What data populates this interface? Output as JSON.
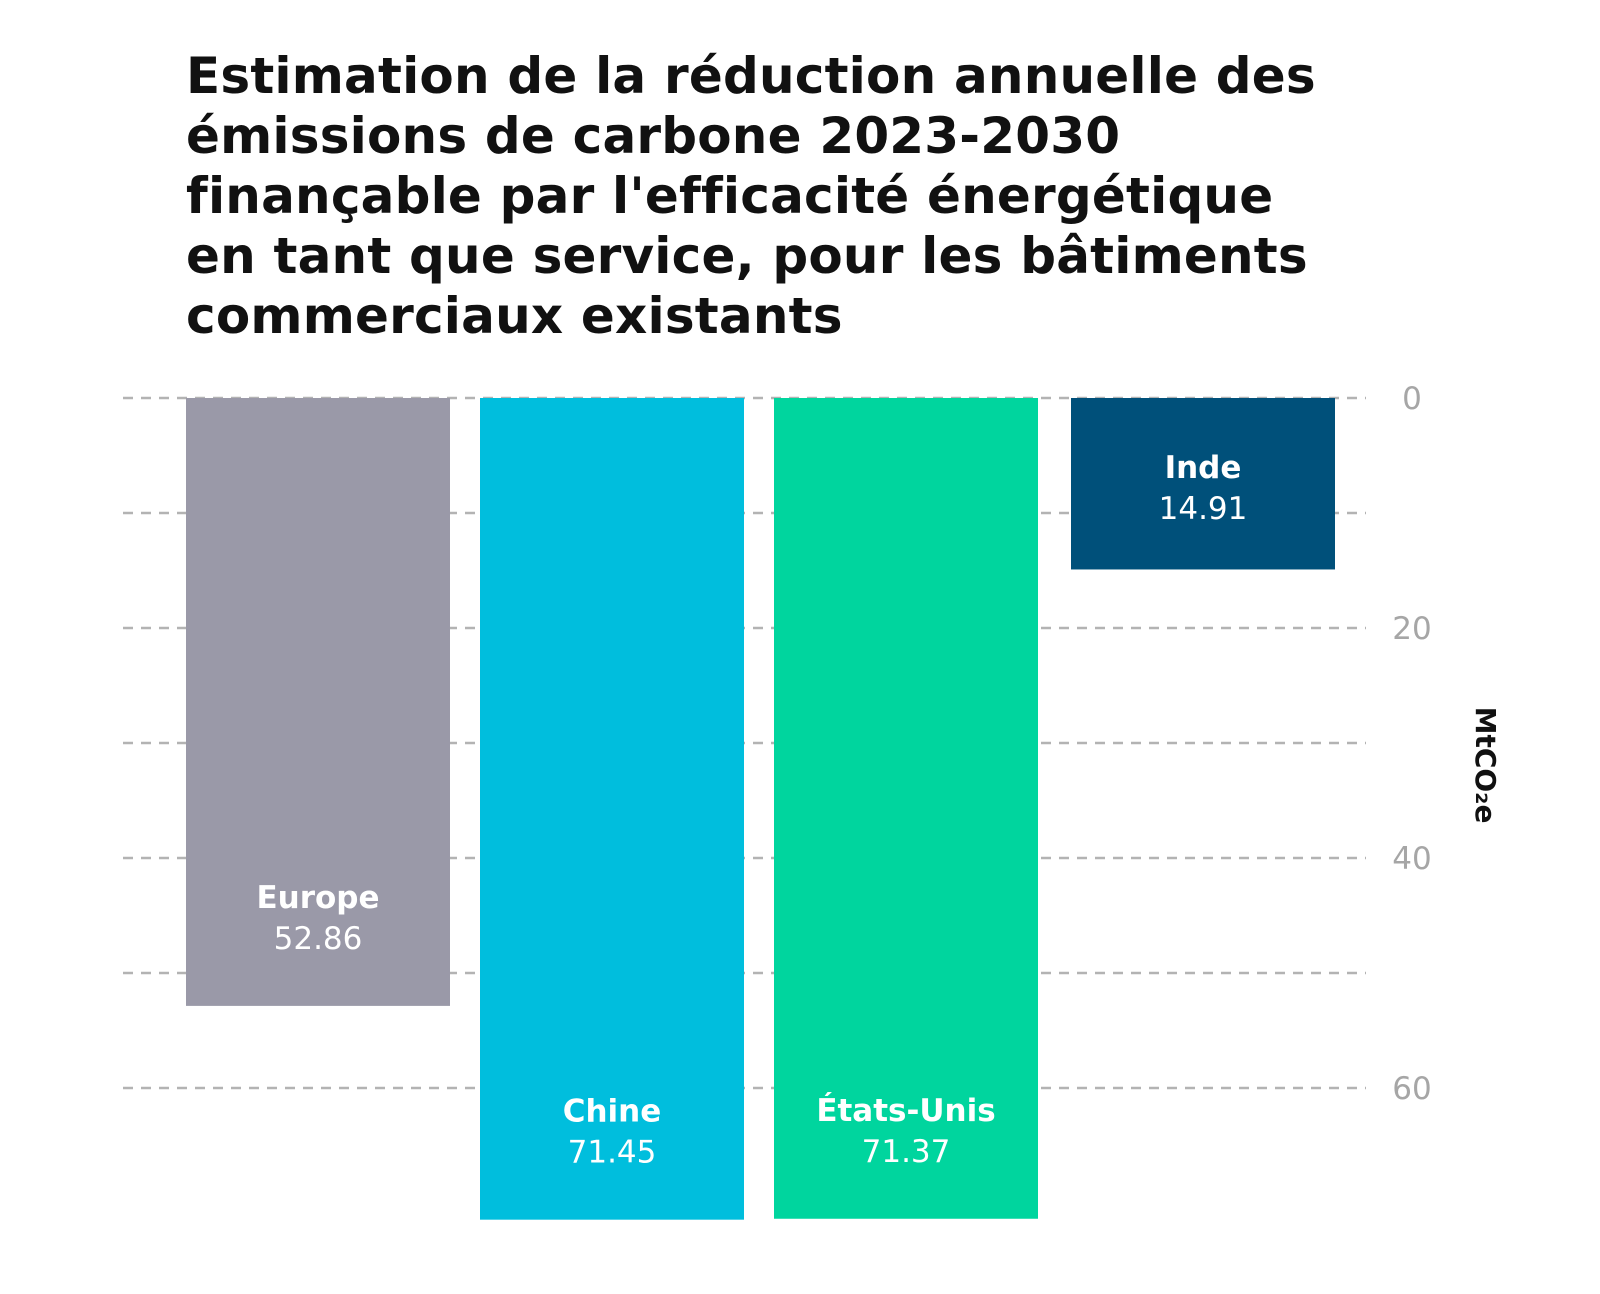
{
  "chart_data": {
    "type": "bar",
    "orientation": "vertical-downward",
    "title_lines": [
      "Estimation de la réduction annuelle des",
      "émissions de carbone 2023-2030",
      "finançable par l'efficacité énergétique",
      "en tant que service, pour les bâtiments",
      "commerciaux existants"
    ],
    "categories": [
      "Europe",
      "Chine",
      "États-Unis",
      "Inde"
    ],
    "values": [
      52.86,
      71.45,
      71.37,
      14.91
    ],
    "value_labels": [
      "52.86",
      "71.45",
      "71.37",
      "14.91"
    ],
    "colors": [
      "#9a99a8",
      "#00bedd",
      "#00d59e",
      "#00507a"
    ],
    "ylabel": "MtCO₂e",
    "ylim": [
      0,
      70
    ],
    "y_axis_position": "right",
    "y_ticks": [
      0,
      20,
      40,
      60
    ],
    "y_tick_labels": [
      "0",
      "20",
      "40",
      "60"
    ],
    "gridlines": [
      0,
      10,
      20,
      30,
      40,
      50,
      60
    ],
    "grid": true,
    "grid_style": "dashed"
  }
}
